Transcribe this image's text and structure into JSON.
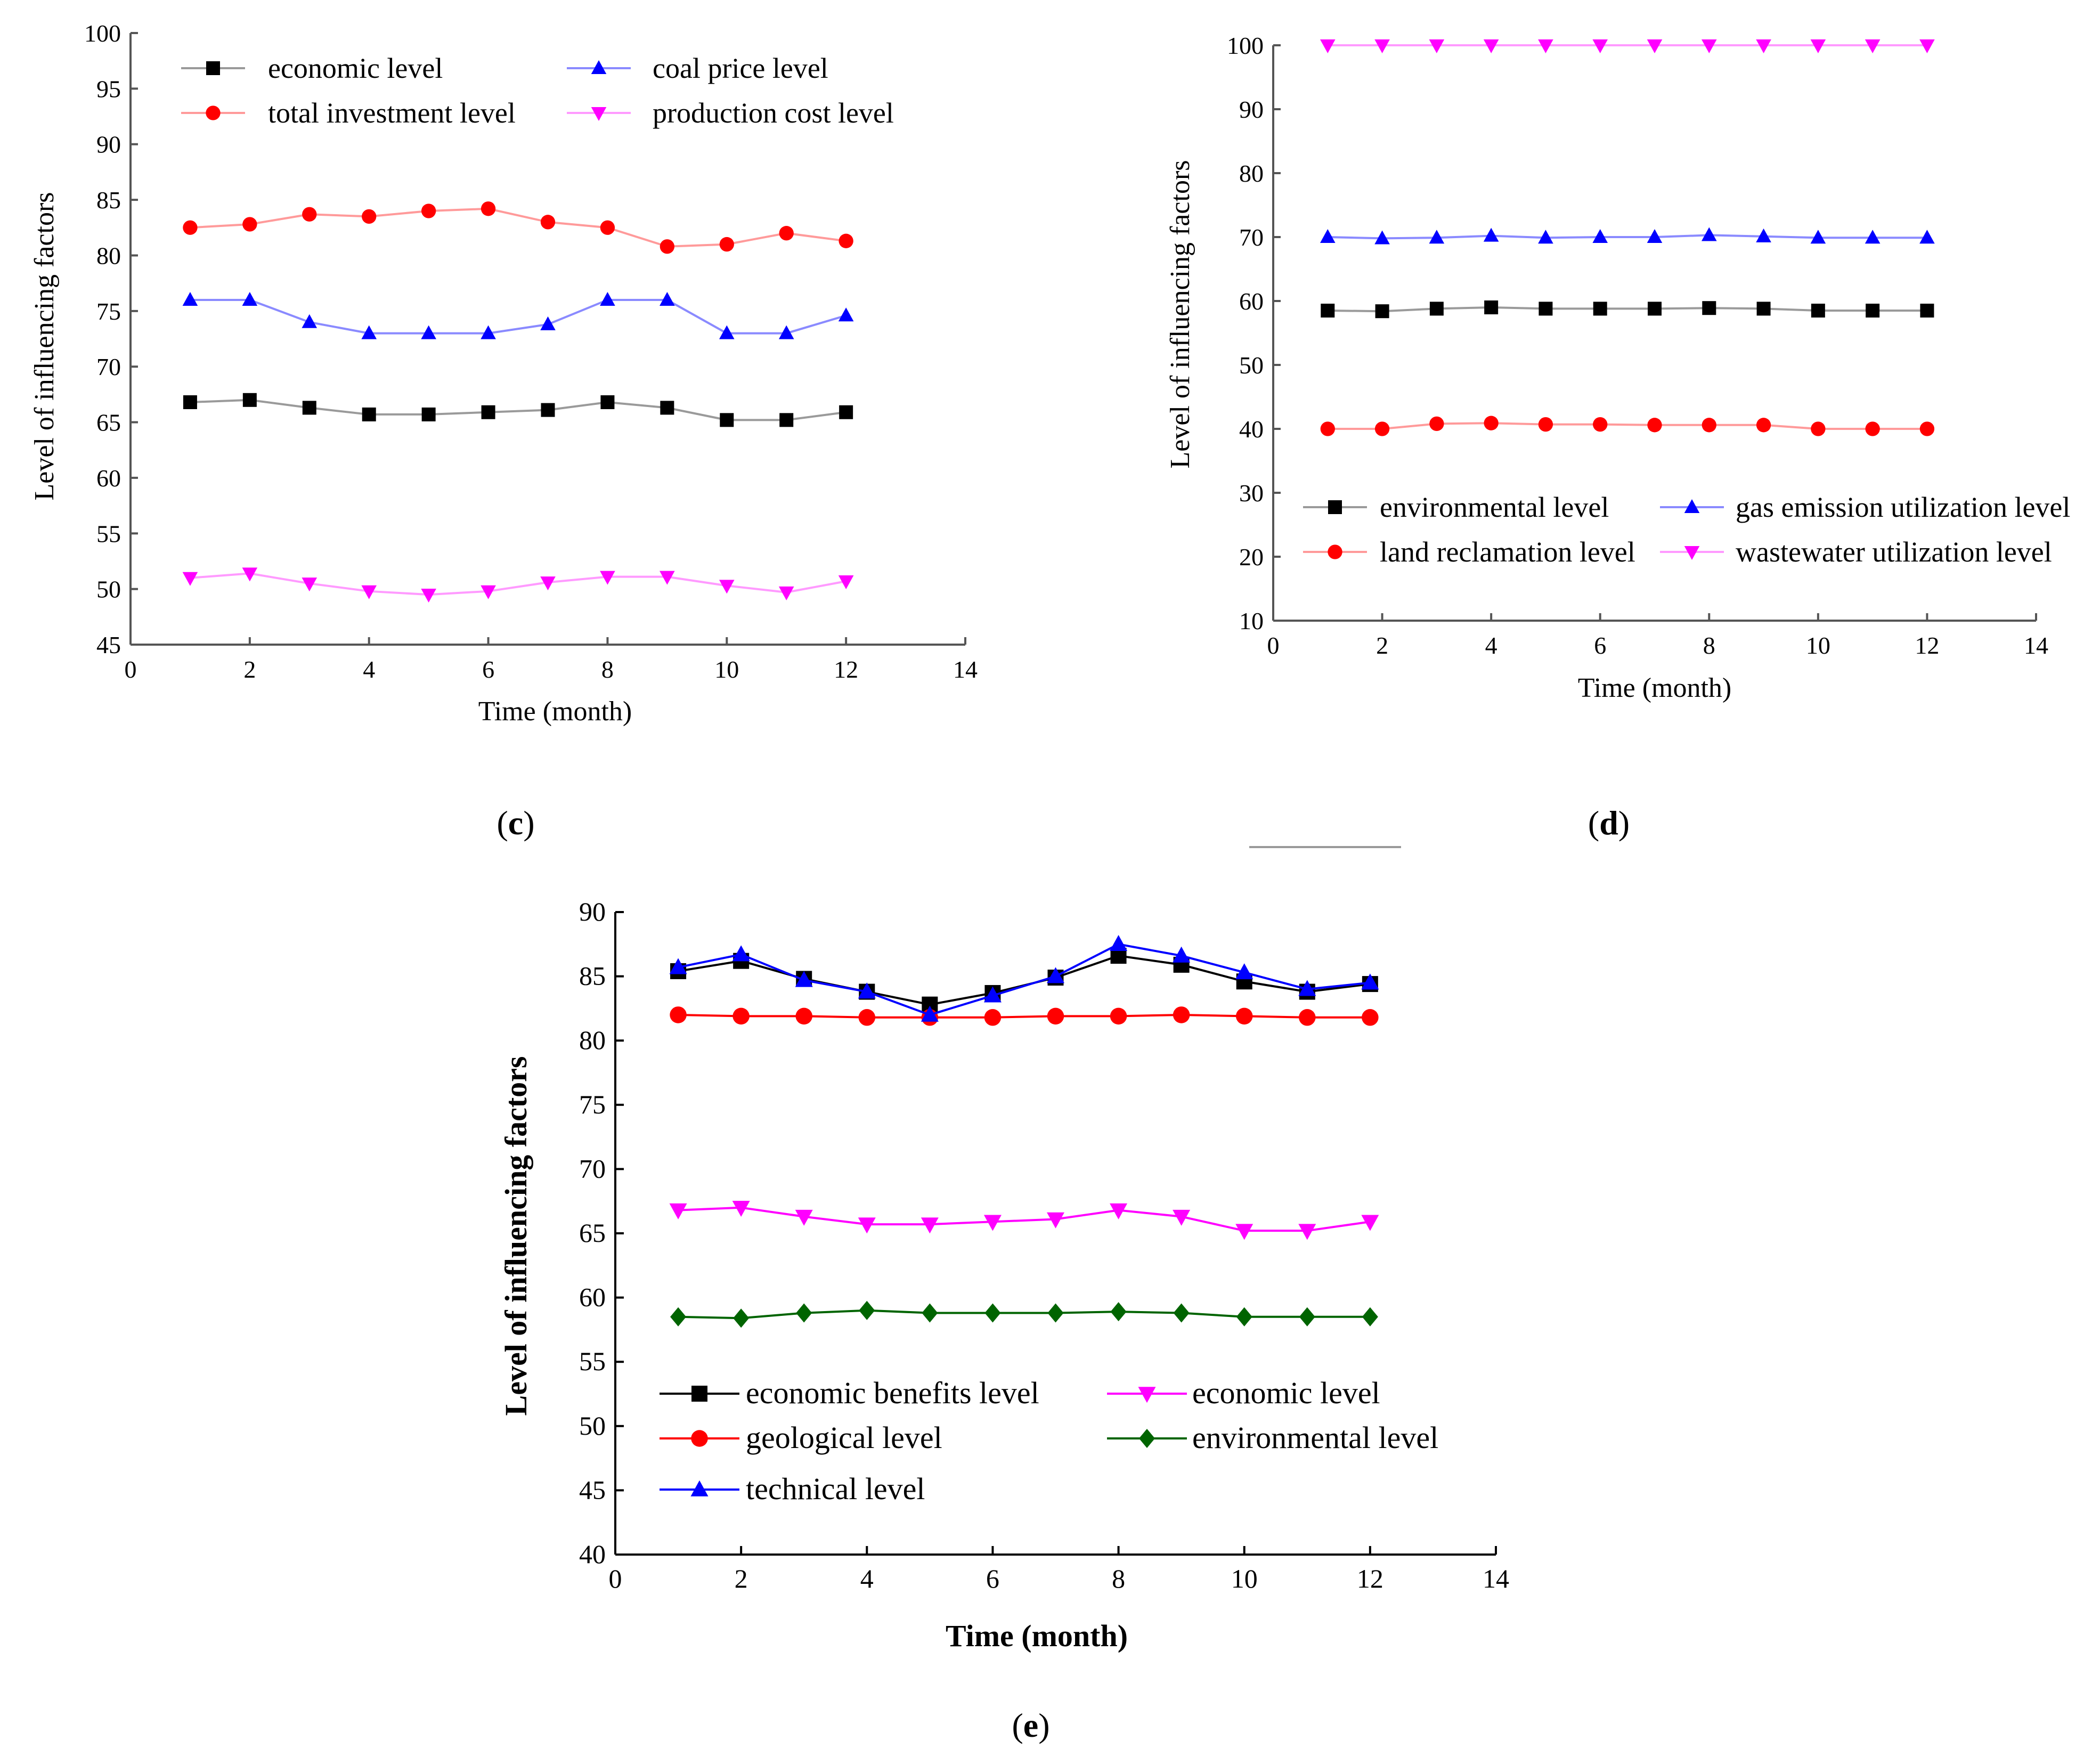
{
  "chart_data": [
    {
      "id": "c",
      "type": "line",
      "panel_label": "c",
      "xlabel": "Time (month)",
      "ylabel": "Level of influencing factors",
      "xlim": [
        0,
        14
      ],
      "ylim": [
        45,
        100
      ],
      "xticks": [
        0,
        2,
        4,
        6,
        8,
        10,
        12,
        14
      ],
      "yticks": [
        45,
        50,
        55,
        60,
        65,
        70,
        75,
        80,
        85,
        90,
        95,
        100
      ],
      "x": [
        1,
        2,
        3,
        4,
        5,
        6,
        7,
        8,
        9,
        10,
        11,
        12
      ],
      "legend_position": "top",
      "series": [
        {
          "name": "economic level",
          "color": "#000000",
          "line_color": "#9a9a9a",
          "marker": "square",
          "values": [
            66.8,
            67.0,
            66.3,
            65.7,
            65.7,
            65.9,
            66.1,
            66.8,
            66.3,
            65.2,
            65.2,
            65.9
          ]
        },
        {
          "name": "coal price level",
          "color": "#0000ff",
          "line_color": "#8a8aff",
          "marker": "triangle-up",
          "values": [
            76.0,
            76.0,
            74.0,
            73.0,
            73.0,
            73.0,
            73.8,
            76.0,
            76.0,
            73.0,
            73.0,
            74.6
          ]
        },
        {
          "name": "total investment level",
          "color": "#ff0000",
          "line_color": "#ff9a9a",
          "marker": "circle",
          "values": [
            82.5,
            82.8,
            83.7,
            83.5,
            84.0,
            84.2,
            83.0,
            82.5,
            80.8,
            81.0,
            82.0,
            81.3
          ]
        },
        {
          "name": "production cost level",
          "color": "#ff00ff",
          "line_color": "#ff9aff",
          "marker": "triangle-down",
          "values": [
            51.0,
            51.4,
            50.5,
            49.8,
            49.5,
            49.8,
            50.6,
            51.1,
            51.1,
            50.3,
            49.7,
            50.7
          ]
        }
      ]
    },
    {
      "id": "d",
      "type": "line",
      "panel_label": "d",
      "xlabel": "Time (month)",
      "ylabel": "Level of influencing factors",
      "xlim": [
        0,
        14
      ],
      "ylim": [
        10,
        100
      ],
      "xticks": [
        0,
        2,
        4,
        6,
        8,
        10,
        12,
        14
      ],
      "yticks": [
        10,
        20,
        30,
        40,
        50,
        60,
        70,
        80,
        90,
        100
      ],
      "x": [
        1,
        2,
        3,
        4,
        5,
        6,
        7,
        8,
        9,
        10,
        11,
        12
      ],
      "legend_position": "bottom",
      "series": [
        {
          "name": "environmental level",
          "color": "#000000",
          "line_color": "#9a9a9a",
          "marker": "square",
          "values": [
            58.5,
            58.4,
            58.8,
            59.0,
            58.8,
            58.8,
            58.8,
            58.9,
            58.8,
            58.5,
            58.5,
            58.5
          ]
        },
        {
          "name": "gas emission utilization level",
          "color": "#0000ff",
          "line_color": "#8a8aff",
          "marker": "triangle-up",
          "values": [
            70.0,
            69.8,
            69.9,
            70.2,
            69.9,
            70.0,
            70.0,
            70.3,
            70.1,
            69.9,
            69.9,
            69.9
          ]
        },
        {
          "name": "land reclamation level",
          "color": "#ff0000",
          "line_color": "#ff9a9a",
          "marker": "circle",
          "values": [
            40.0,
            40.0,
            40.8,
            40.9,
            40.7,
            40.7,
            40.6,
            40.6,
            40.6,
            40.0,
            40.0,
            40.0
          ]
        },
        {
          "name": "wastewater utilization level",
          "color": "#ff00ff",
          "line_color": "#ff9aff",
          "marker": "triangle-down",
          "values": [
            100,
            100,
            100,
            100,
            100,
            100,
            100,
            100,
            100,
            100,
            100,
            100
          ]
        }
      ]
    },
    {
      "id": "e",
      "type": "line",
      "panel_label": "e",
      "xlabel": "Time (month)",
      "ylabel": "Level of influencing factors",
      "xlim": [
        0,
        14
      ],
      "ylim": [
        40,
        90
      ],
      "xticks": [
        0,
        2,
        4,
        6,
        8,
        10,
        12,
        14
      ],
      "yticks": [
        40,
        45,
        50,
        55,
        60,
        65,
        70,
        75,
        80,
        85,
        90
      ],
      "x": [
        1,
        2,
        3,
        4,
        5,
        6,
        7,
        8,
        9,
        10,
        11,
        12
      ],
      "legend_position": "bottom",
      "series": [
        {
          "name": "economic benefits level",
          "color": "#000000",
          "line_color": "#000000",
          "marker": "square",
          "values": [
            85.4,
            86.2,
            84.8,
            83.8,
            82.8,
            83.7,
            84.9,
            86.6,
            85.9,
            84.6,
            83.8,
            84.4
          ]
        },
        {
          "name": "economic level",
          "color": "#ff00ff",
          "line_color": "#ff00ff",
          "marker": "triangle-down",
          "values": [
            66.8,
            67.0,
            66.3,
            65.7,
            65.7,
            65.9,
            66.1,
            66.8,
            66.3,
            65.2,
            65.2,
            65.9
          ]
        },
        {
          "name": "geological level",
          "color": "#ff0000",
          "line_color": "#ff0000",
          "marker": "circle",
          "values": [
            82.0,
            81.9,
            81.9,
            81.8,
            81.8,
            81.8,
            81.9,
            81.9,
            82.0,
            81.9,
            81.8,
            81.8
          ]
        },
        {
          "name": "environmental level",
          "color": "#006400",
          "line_color": "#006400",
          "marker": "diamond",
          "values": [
            58.5,
            58.4,
            58.8,
            59.0,
            58.8,
            58.8,
            58.8,
            58.9,
            58.8,
            58.5,
            58.5,
            58.5
          ]
        },
        {
          "name": "technical level",
          "color": "#0000ff",
          "line_color": "#0000ff",
          "marker": "triangle-up",
          "values": [
            85.7,
            86.7,
            84.7,
            83.8,
            82.0,
            83.5,
            85.0,
            87.5,
            86.6,
            85.3,
            84.0,
            84.5
          ]
        }
      ]
    }
  ]
}
